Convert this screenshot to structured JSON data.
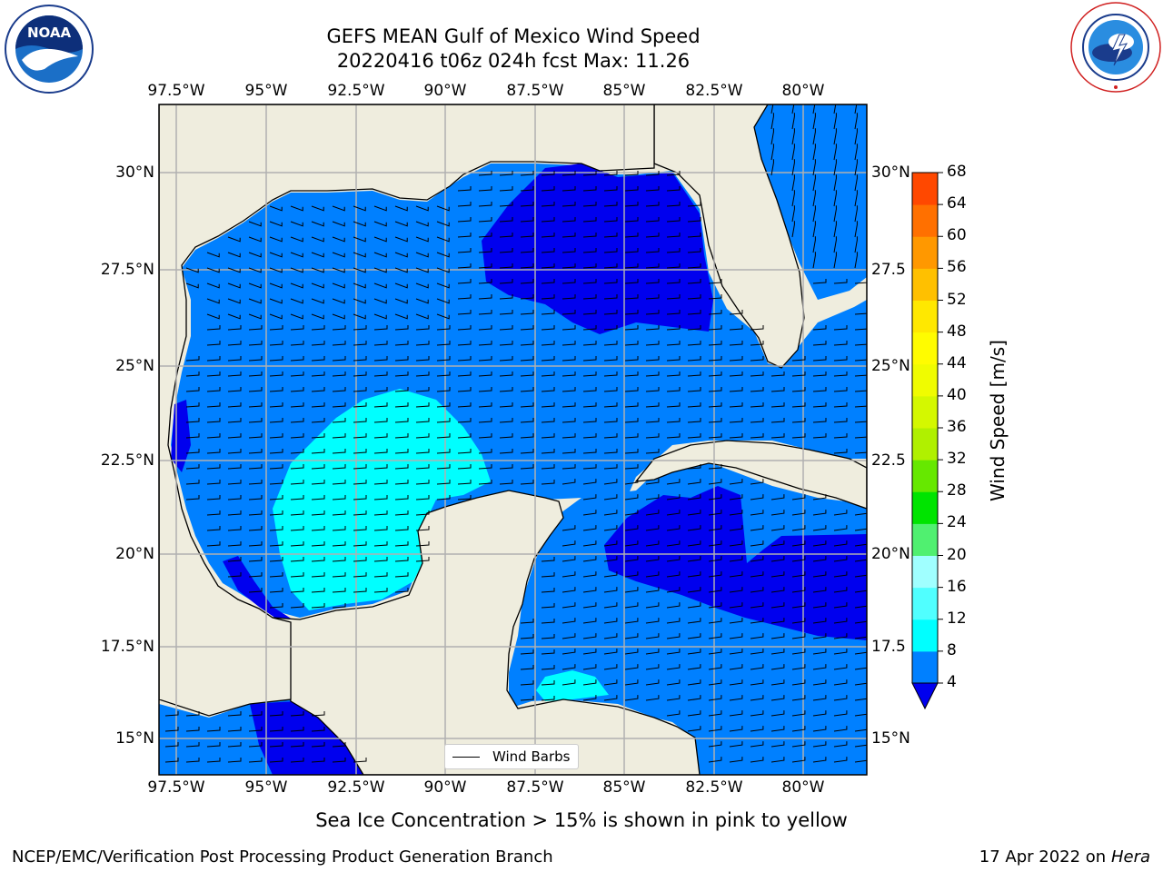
{
  "header": {
    "title_line1": "GEFS MEAN Gulf of Mexico Wind Speed",
    "title_line2": "20220416 t06z 024h fcst   Max: 11.26"
  },
  "logos": {
    "left": {
      "name": "noaa-logo",
      "text": "NOAA",
      "ring_text": "NATIONAL OCEANIC AND ATMOSPHERIC ADMINISTRATION · U.S. DEPARTMENT OF COMMERCE"
    },
    "right": {
      "name": "nws-logo",
      "ring_text": "NATIONAL WEATHER SERVICE"
    }
  },
  "axes": {
    "lon_ticks": [
      "97.5°W",
      "95°W",
      "92.5°W",
      "90°W",
      "87.5°W",
      "85°W",
      "82.5°W",
      "80°W"
    ],
    "lat_ticks_left": [
      "30°N",
      "27.5°N",
      "25°N",
      "22.5°N",
      "20°N",
      "17.5°N",
      "15°N"
    ],
    "lat_ticks_right": [
      "30°N",
      "27.5",
      "25°N",
      "22.5",
      "20°N",
      "17.5",
      "15°N"
    ]
  },
  "legend": {
    "wind_barbs": "Wind Barbs"
  },
  "colorbar": {
    "label": "Wind Speed [m/s]",
    "ticks": [
      "68",
      "64",
      "60",
      "56",
      "52",
      "48",
      "44",
      "40",
      "36",
      "32",
      "28",
      "24",
      "20",
      "16",
      "12",
      "8",
      "4"
    ],
    "colors": [
      "#ff0000",
      "#ff2000",
      "#ff4800",
      "#ff7000",
      "#ff9800",
      "#ffc000",
      "#ffe800",
      "#fffc00",
      "#f0fc00",
      "#d4f800",
      "#b0f000",
      "#66e800",
      "#00e400",
      "#50f070",
      "#a0ffff",
      "#50ffff",
      "#00ffff",
      "#0080ff"
    ],
    "under_color": "#0000ee"
  },
  "notes": {
    "sea_ice": "Sea Ice Concentration > 15% is shown in pink to yellow"
  },
  "footer": {
    "left": "NCEP/EMC/Verification Post Processing Product Generation Branch",
    "right_prefix": "17 Apr 2022 on ",
    "right_italic": "Hera"
  },
  "map": {
    "land_color": "#efedde",
    "ocean_4_8": "#0080ff",
    "ocean_under_4": "#0000ee",
    "ocean_8_12": "#00ffff",
    "grid_color": "#b0b0b0"
  }
}
